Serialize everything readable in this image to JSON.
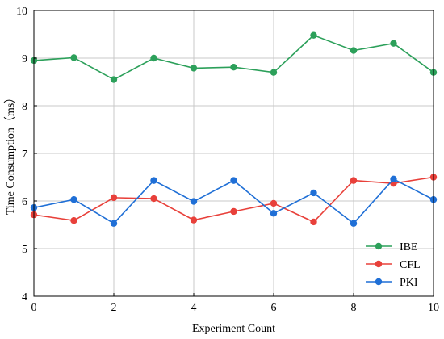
{
  "chart_data": {
    "type": "line",
    "title": "",
    "xlabel": "Experiment Count",
    "ylabel": "Time Consumption（ms）",
    "xlim": [
      0,
      10
    ],
    "ylim": [
      4,
      10
    ],
    "xticks": [
      0,
      2,
      4,
      6,
      8,
      10
    ],
    "yticks": [
      4,
      5,
      6,
      7,
      8,
      9,
      10
    ],
    "grid": true,
    "legend_position": "bottom-right",
    "x": [
      0,
      1,
      2,
      3,
      4,
      5,
      6,
      7,
      8,
      9,
      10
    ],
    "series": [
      {
        "name": "IBE",
        "color": "#2ca05a",
        "values": [
          8.95,
          9.01,
          8.55,
          9.0,
          8.79,
          8.81,
          8.7,
          9.48,
          9.16,
          9.31,
          8.7
        ]
      },
      {
        "name": "CFL",
        "color": "#e8403a",
        "values": [
          5.71,
          5.59,
          6.07,
          6.05,
          5.6,
          5.78,
          5.95,
          5.56,
          6.43,
          6.37,
          6.5
        ]
      },
      {
        "name": "PKI",
        "color": "#1f6fd6",
        "values": [
          5.86,
          6.03,
          5.53,
          6.43,
          5.99,
          6.43,
          5.74,
          6.17,
          5.53,
          6.46,
          6.03
        ]
      }
    ]
  }
}
